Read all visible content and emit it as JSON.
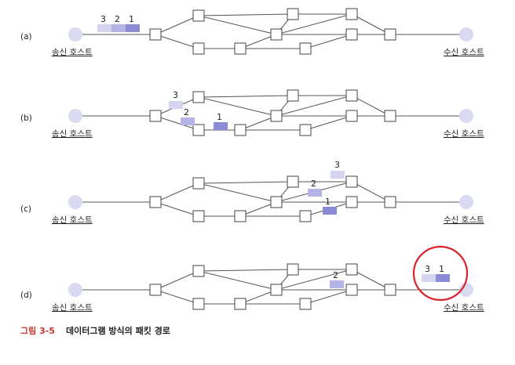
{
  "panels": [
    {
      "id": "a",
      "label": "(a)",
      "sender": "송신 호스트",
      "receiver": "수신 호스트",
      "packets": [
        {
          "num": "3",
          "color": "#d4d4f0"
        },
        {
          "num": "2",
          "color": "#b3b3e6"
        },
        {
          "num": "1",
          "color": "#8b8bd6"
        }
      ]
    },
    {
      "id": "b",
      "label": "(b)",
      "sender": "송신 호스트",
      "receiver": "수신 호스트",
      "packets": [
        {
          "num": "3",
          "color": "#d4d4f0"
        },
        {
          "num": "2",
          "color": "#b3b3e6"
        },
        {
          "num": "1",
          "color": "#8b8bd6"
        }
      ]
    },
    {
      "id": "c",
      "label": "(c)",
      "sender": "송신 호스트",
      "receiver": "수신 호스트",
      "packets": [
        {
          "num": "3",
          "color": "#d4d4f0"
        },
        {
          "num": "2",
          "color": "#b3b3e6"
        },
        {
          "num": "1",
          "color": "#8b8bd6"
        }
      ]
    },
    {
      "id": "d",
      "label": "(d)",
      "sender": "송신 호스트",
      "receiver": "수신 호스트",
      "packets": [
        {
          "num": "2",
          "color": "#b3b3e6"
        },
        {
          "num": "3",
          "color": "#d4d4f0"
        },
        {
          "num": "1",
          "color": "#8b8bd6"
        }
      ],
      "highlight_color": "#d9232a"
    }
  ],
  "caption": {
    "number": "그림 3-5",
    "text": "데이터그램 방식의 패킷 경로"
  }
}
